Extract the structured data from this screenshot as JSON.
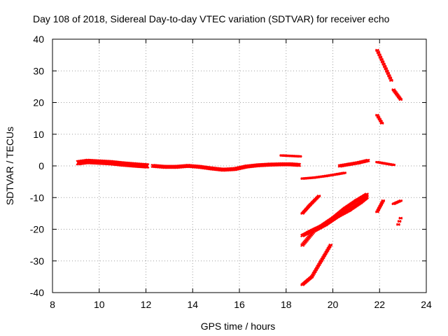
{
  "chart_data": {
    "type": "scatter",
    "title": "Day 108 of 2018, Sidereal Day-to-day VTEC variation (SDTVAR) for receiver echo",
    "xlabel": "GPS time / hours",
    "ylabel": "SDTVAR / TECUs",
    "xlim": [
      8,
      24
    ],
    "ylim": [
      -40,
      40
    ],
    "x_ticks": [
      8,
      10,
      12,
      14,
      16,
      18,
      20,
      22,
      24
    ],
    "y_ticks": [
      -40,
      -30,
      -20,
      -10,
      0,
      10,
      20,
      30,
      40
    ],
    "x_tick_labels": [
      "8",
      "10",
      "12",
      "14",
      "16",
      "18",
      "20",
      "22",
      "24"
    ],
    "y_tick_labels": [
      "-40",
      "-30",
      "-20",
      "-10",
      "0",
      "10",
      "20",
      "30",
      "40"
    ],
    "grid": true,
    "series_color": "#ff0000",
    "segments": [
      {
        "x": [
          9.1,
          9.5,
          10.0,
          10.5,
          11.0,
          11.5,
          12.05
        ],
        "y": [
          1.0,
          1.4,
          1.2,
          1.0,
          0.6,
          0.3,
          0.0
        ],
        "spread": 1.5
      },
      {
        "x": [
          12.3,
          12.8,
          13.3,
          13.8,
          14.3,
          14.8,
          15.3,
          15.8,
          16.3,
          16.8,
          17.3,
          17.8,
          18.2,
          18.55
        ],
        "y": [
          0.0,
          -0.3,
          -0.3,
          0.0,
          -0.3,
          -0.8,
          -1.2,
          -1.0,
          -0.2,
          0.2,
          0.4,
          0.5,
          0.5,
          0.3
        ],
        "spread": 1.0
      },
      {
        "x": [
          17.8,
          18.6
        ],
        "y": [
          3.3,
          3.0
        ],
        "spread": 0.4
      },
      {
        "x": [
          18.7,
          19.2,
          19.7,
          20.2,
          20.5
        ],
        "y": [
          -4.0,
          -3.7,
          -3.2,
          -2.6,
          -2.2
        ],
        "spread": 0.4
      },
      {
        "x": [
          20.3,
          20.7,
          21.1,
          21.5
        ],
        "y": [
          0.0,
          0.5,
          1.0,
          1.7
        ],
        "spread": 0.8
      },
      {
        "x": [
          21.9,
          22.2,
          22.6
        ],
        "y": [
          1.2,
          0.8,
          0.3
        ],
        "spread": 0.4
      },
      {
        "x": [
          18.7,
          19.0,
          19.5,
          20.0,
          20.5,
          21.0,
          21.45
        ],
        "y": [
          -22.0,
          -20.8,
          -19.0,
          -16.5,
          -13.5,
          -11.0,
          -9.0
        ],
        "spread": 0.8
      },
      {
        "x": [
          18.7,
          19.2,
          19.7,
          20.2,
          20.7,
          21.2,
          21.45
        ],
        "y": [
          -25.0,
          -20.5,
          -18.5,
          -16.0,
          -14.0,
          -11.5,
          -10.0
        ],
        "spread": 0.8
      },
      {
        "x": [
          18.7,
          19.0,
          19.4
        ],
        "y": [
          -15.0,
          -12.5,
          -9.5
        ],
        "spread": 0.5
      },
      {
        "x": [
          18.7,
          19.1,
          19.5,
          19.9
        ],
        "y": [
          -37.5,
          -35.0,
          -30.0,
          -25.0
        ],
        "spread": 0.6
      },
      {
        "x": [
          21.9,
          22.5
        ],
        "y": [
          36.5,
          27.0
        ],
        "spread": 0.6
      },
      {
        "x": [
          22.6,
          22.9
        ],
        "y": [
          24.0,
          21.0
        ],
        "spread": 0.6
      },
      {
        "x": [
          21.9,
          22.1
        ],
        "y": [
          16.0,
          13.5
        ],
        "spread": 0.5
      },
      {
        "x": [
          21.9,
          22.15
        ],
        "y": [
          -14.5,
          -11.0
        ],
        "spread": 0.5
      },
      {
        "x": [
          22.6,
          22.9
        ],
        "y": [
          -12.0,
          -11.0
        ],
        "spread": 0.4
      },
      {
        "x": [
          22.8,
          22.9
        ],
        "y": [
          -18.5,
          -16.5
        ],
        "spread": 0.5
      }
    ]
  }
}
